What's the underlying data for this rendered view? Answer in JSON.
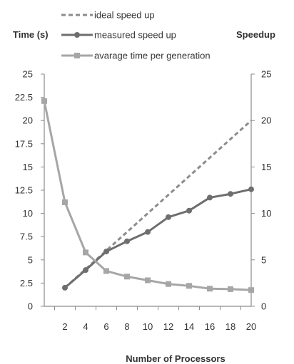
{
  "chart_data": {
    "type": "line",
    "title": "",
    "xlabel": "Number of Processors",
    "ylabel_left": "Time (s)",
    "ylabel_right": "Speedup",
    "x": [
      2,
      4,
      6,
      8,
      10,
      12,
      14,
      16,
      18,
      20
    ],
    "x_tick_labels": [
      "2",
      "4",
      "6",
      "8",
      "10",
      "12",
      "14",
      "16",
      "18",
      "20"
    ],
    "xlim": [
      0,
      20
    ],
    "ylim_left": [
      0,
      25
    ],
    "ylim_right": [
      0,
      25
    ],
    "y_tick_labels_left": [
      "0",
      "2.5",
      "5",
      "7.5",
      "10",
      "12.5",
      "15",
      "17.5",
      "20",
      "22.5",
      "25"
    ],
    "y_tick_labels_right": [
      "0",
      "5",
      "10",
      "15",
      "20",
      "25"
    ],
    "grid": false,
    "legend_position": "top",
    "series": [
      {
        "name": "ideal speed up",
        "axis": "right",
        "style": "dashed",
        "marker": "none",
        "color": "#8c8c8c",
        "x": [
          2,
          4,
          6,
          8,
          10,
          12,
          14,
          16,
          18,
          20
        ],
        "values": [
          2,
          4,
          6,
          8,
          10,
          12,
          14,
          16,
          18,
          20
        ]
      },
      {
        "name": "measured speed up",
        "axis": "right",
        "style": "solid",
        "marker": "circle",
        "color": "#6e6e6e",
        "x": [
          2,
          4,
          6,
          8,
          10,
          12,
          14,
          16,
          18,
          20
        ],
        "values": [
          2,
          3.9,
          5.9,
          7,
          8,
          9.6,
          10.3,
          11.7,
          12.1,
          12.6
        ]
      },
      {
        "name": "avarage time per generation",
        "axis": "left",
        "style": "solid",
        "marker": "square",
        "color": "#a6a6a6",
        "x": [
          0,
          2,
          4,
          6,
          8,
          10,
          12,
          14,
          16,
          18,
          20
        ],
        "values": [
          22.1,
          11.2,
          5.8,
          3.8,
          3.2,
          2.8,
          2.4,
          2.2,
          1.9,
          1.85,
          1.75
        ]
      }
    ]
  }
}
